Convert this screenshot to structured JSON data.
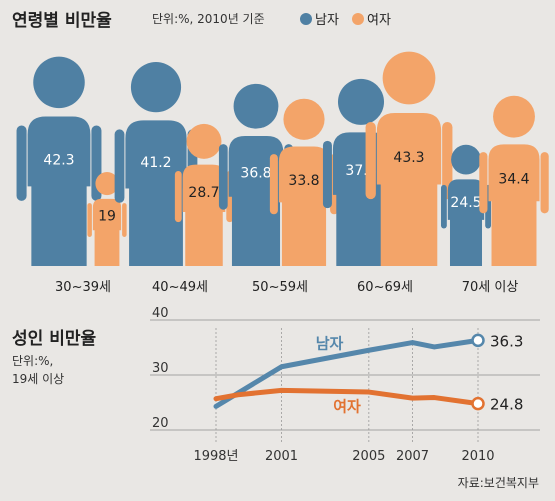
{
  "chart_data": [
    {
      "type": "pictogram",
      "title": "연령별 비만율",
      "unit": "단위:%, 2010년 기준",
      "legend": [
        {
          "name": "남자",
          "color": "#4f80a3"
        },
        {
          "name": "여자",
          "color": "#f3a469"
        }
      ],
      "categories": [
        "30~39세",
        "40~49세",
        "50~59세",
        "60~69세",
        "70세 이상"
      ],
      "series": [
        {
          "name": "남자",
          "values": [
            42.3,
            41.2,
            36.8,
            37.8,
            24.5
          ],
          "labels": [
            "42.3",
            "41.2",
            "36.8",
            "37.8",
            "24.5"
          ]
        },
        {
          "name": "여자",
          "values": [
            19,
            28.7,
            33.8,
            43.3,
            34.4
          ],
          "labels": [
            "19",
            "28.7",
            "33.8",
            "43.3",
            "34.4"
          ]
        }
      ]
    },
    {
      "type": "line",
      "title": "성인 비만율",
      "unit": [
        "단위:%,",
        "19세 이상"
      ],
      "x_ticks": [
        1998,
        2001,
        2005,
        2007,
        2010
      ],
      "x_tick_labels": [
        "1998년",
        "2001",
        "2005",
        "2007",
        "2010"
      ],
      "y_ticks": [
        20,
        30,
        40
      ],
      "y_tick_labels": [
        "20",
        "30",
        "40"
      ],
      "ylim": [
        20,
        40
      ],
      "series": [
        {
          "name": "남자",
          "color": "#5587ab",
          "x": [
            1998,
            2001,
            2005,
            2007,
            2008,
            2010
          ],
          "y": [
            24.3,
            31.5,
            34.5,
            35.9,
            35.1,
            36.3
          ],
          "end_label": "36.3"
        },
        {
          "name": "여자",
          "color": "#e27231",
          "x": [
            1998,
            1999,
            2001,
            2005,
            2007,
            2008,
            2010
          ],
          "y": [
            25.7,
            26.4,
            27.2,
            26.9,
            25.8,
            25.9,
            24.8
          ],
          "end_label": "24.8"
        }
      ]
    }
  ],
  "source": "자료:보건복지부"
}
